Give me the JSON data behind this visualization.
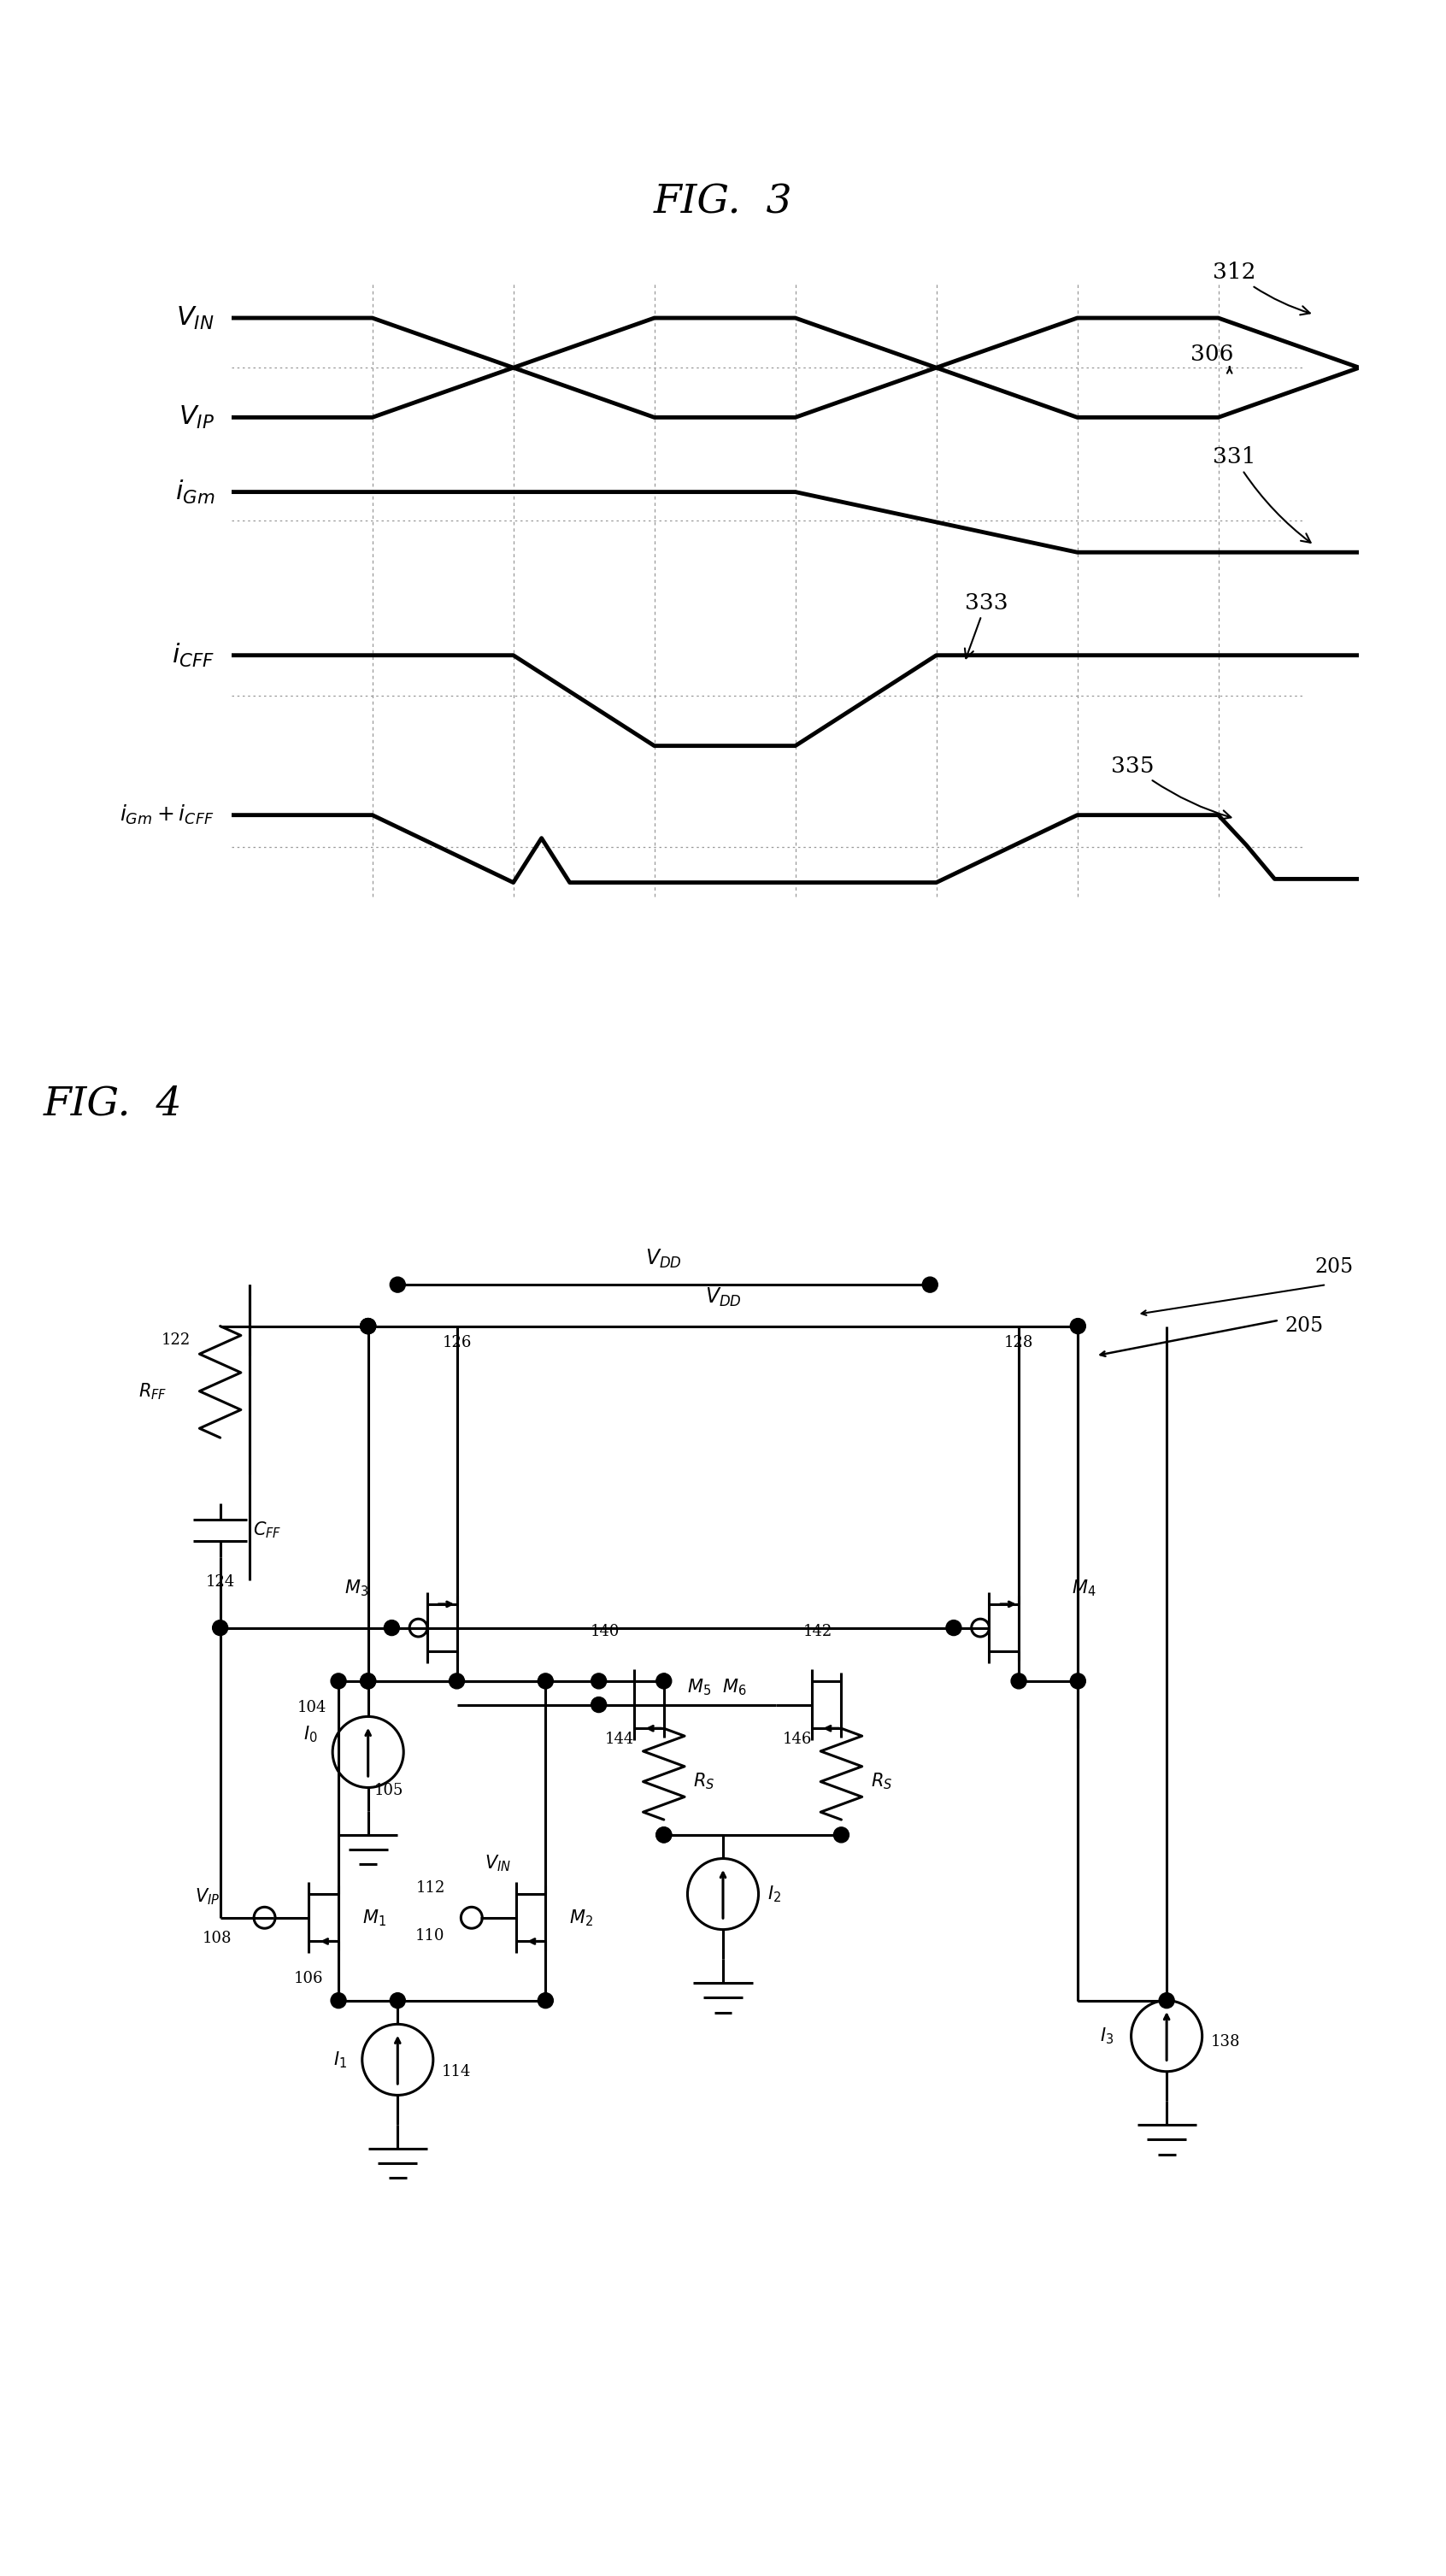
{
  "fig3_title": "FIG.  3",
  "fig4_title": "FIG.  4",
  "bg": "#ffffff",
  "lc": "#000000",
  "lw_wave": 3.5,
  "lw_ckt": 2.2,
  "grid_lc": "#999999",
  "dot_lc": "#aaaaaa",
  "vin_label": "$V_{IN}$",
  "vip_label": "$V_{IP}$",
  "igm_label": "$i_{Gm}$",
  "icff_label": "$i_{CFF}$",
  "isum_label": "$i_{Gm} + i_{CFF}$"
}
